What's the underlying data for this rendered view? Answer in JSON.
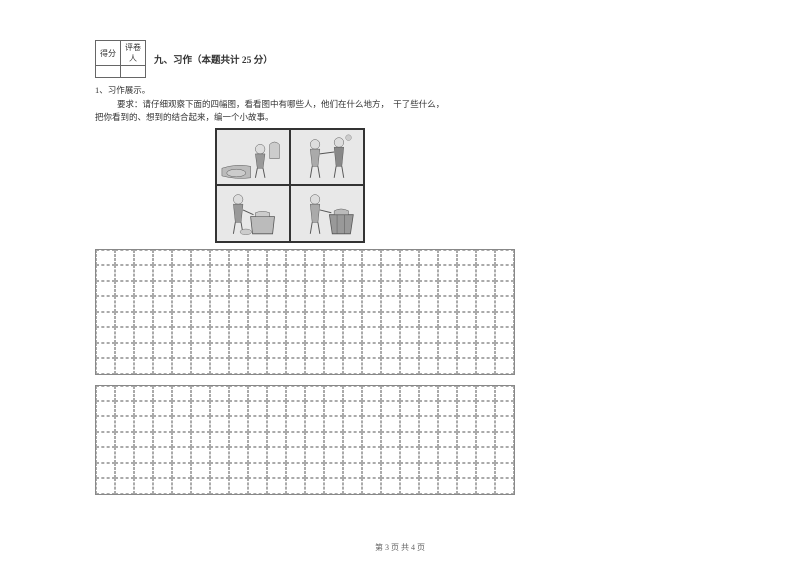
{
  "score_box": {
    "col1": "得分",
    "col2": "评卷人"
  },
  "section": {
    "number": "九、",
    "title": "习作",
    "points": "（本题共计 25 分）"
  },
  "item": {
    "num": "1、习作展示。",
    "line1": "要求：请仔细观察下面的四幅图，看看图中有哪些人，他们在什么地方，　干了些什么，",
    "line2": "把你看到的、想到的结合起来，编一个小故事。"
  },
  "writing_grids": {
    "grid1_cols": 22,
    "grid1_rows": 8,
    "grid2_cols": 22,
    "grid2_rows": 7,
    "border_color": "#888",
    "dash_color": "#aaa"
  },
  "footer": {
    "text": "第 3 页 共 4 页"
  },
  "illustrations": {
    "panels": 4,
    "bg": "#f0f0f0",
    "stroke": "#555"
  }
}
